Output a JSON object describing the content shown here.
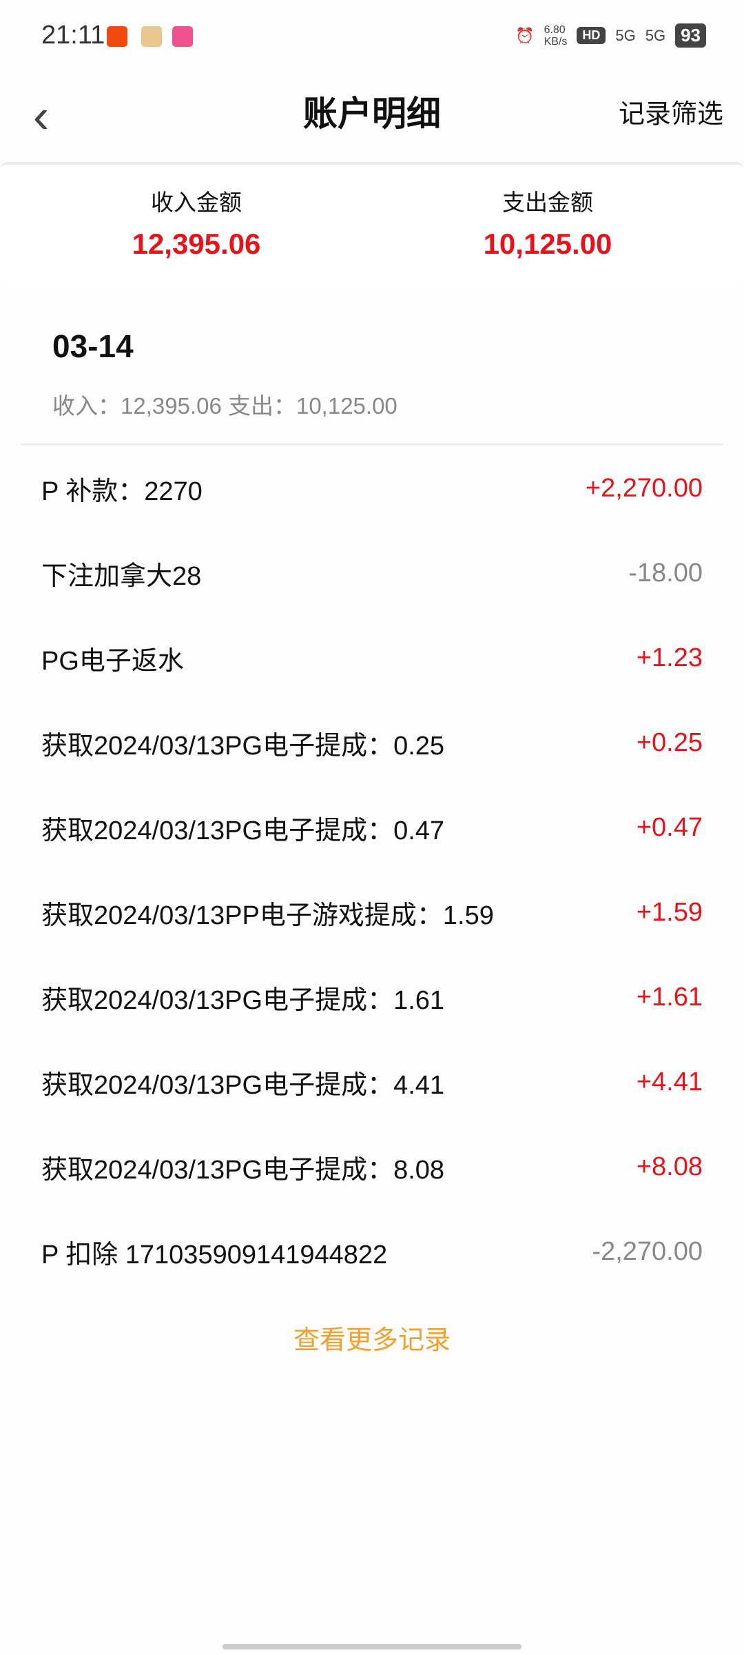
{
  "status": {
    "time": "21:11",
    "net_speed": "6.80",
    "net_unit": "KB/s",
    "hd": "HD",
    "sim1": "5G",
    "sim2": "5G",
    "battery": "93"
  },
  "header": {
    "title": "账户明细",
    "filter": "记录筛选",
    "back_icon": "chevron-left-icon"
  },
  "summary": {
    "income_label": "收入金额",
    "income": "12,395.06",
    "expense_label": "支出金额",
    "expense": "10,125.00"
  },
  "group": {
    "date": "03-14",
    "subtitle": "收入：12,395.06 支出：10,125.00"
  },
  "records": [
    {
      "desc": "P 补款：2270",
      "amount": "+2,270.00",
      "type": "pos"
    },
    {
      "desc": "下注加拿大28",
      "amount": "-18.00",
      "type": "neg"
    },
    {
      "desc": "PG电子返水",
      "amount": "+1.23",
      "type": "pos"
    },
    {
      "desc": "获取2024/03/13PG电子提成：0.25",
      "amount": "+0.25",
      "type": "pos"
    },
    {
      "desc": "获取2024/03/13PG电子提成：0.47",
      "amount": "+0.47",
      "type": "pos"
    },
    {
      "desc": "获取2024/03/13PP电子游戏提成：1.59",
      "amount": "+1.59",
      "type": "pos"
    },
    {
      "desc": "获取2024/03/13PG电子提成：1.61",
      "amount": "+1.61",
      "type": "pos"
    },
    {
      "desc": "获取2024/03/13PG电子提成：4.41",
      "amount": "+4.41",
      "type": "pos"
    },
    {
      "desc": "获取2024/03/13PG电子提成：8.08",
      "amount": "+8.08",
      "type": "pos"
    },
    {
      "desc": "P 扣除 17103590914194482​2",
      "amount": "-2,270.00",
      "type": "neg"
    }
  ],
  "more": "查看更多记录",
  "colors": {
    "income": "#e8121a",
    "expense_row": "#888888",
    "link": "#f0a030"
  }
}
